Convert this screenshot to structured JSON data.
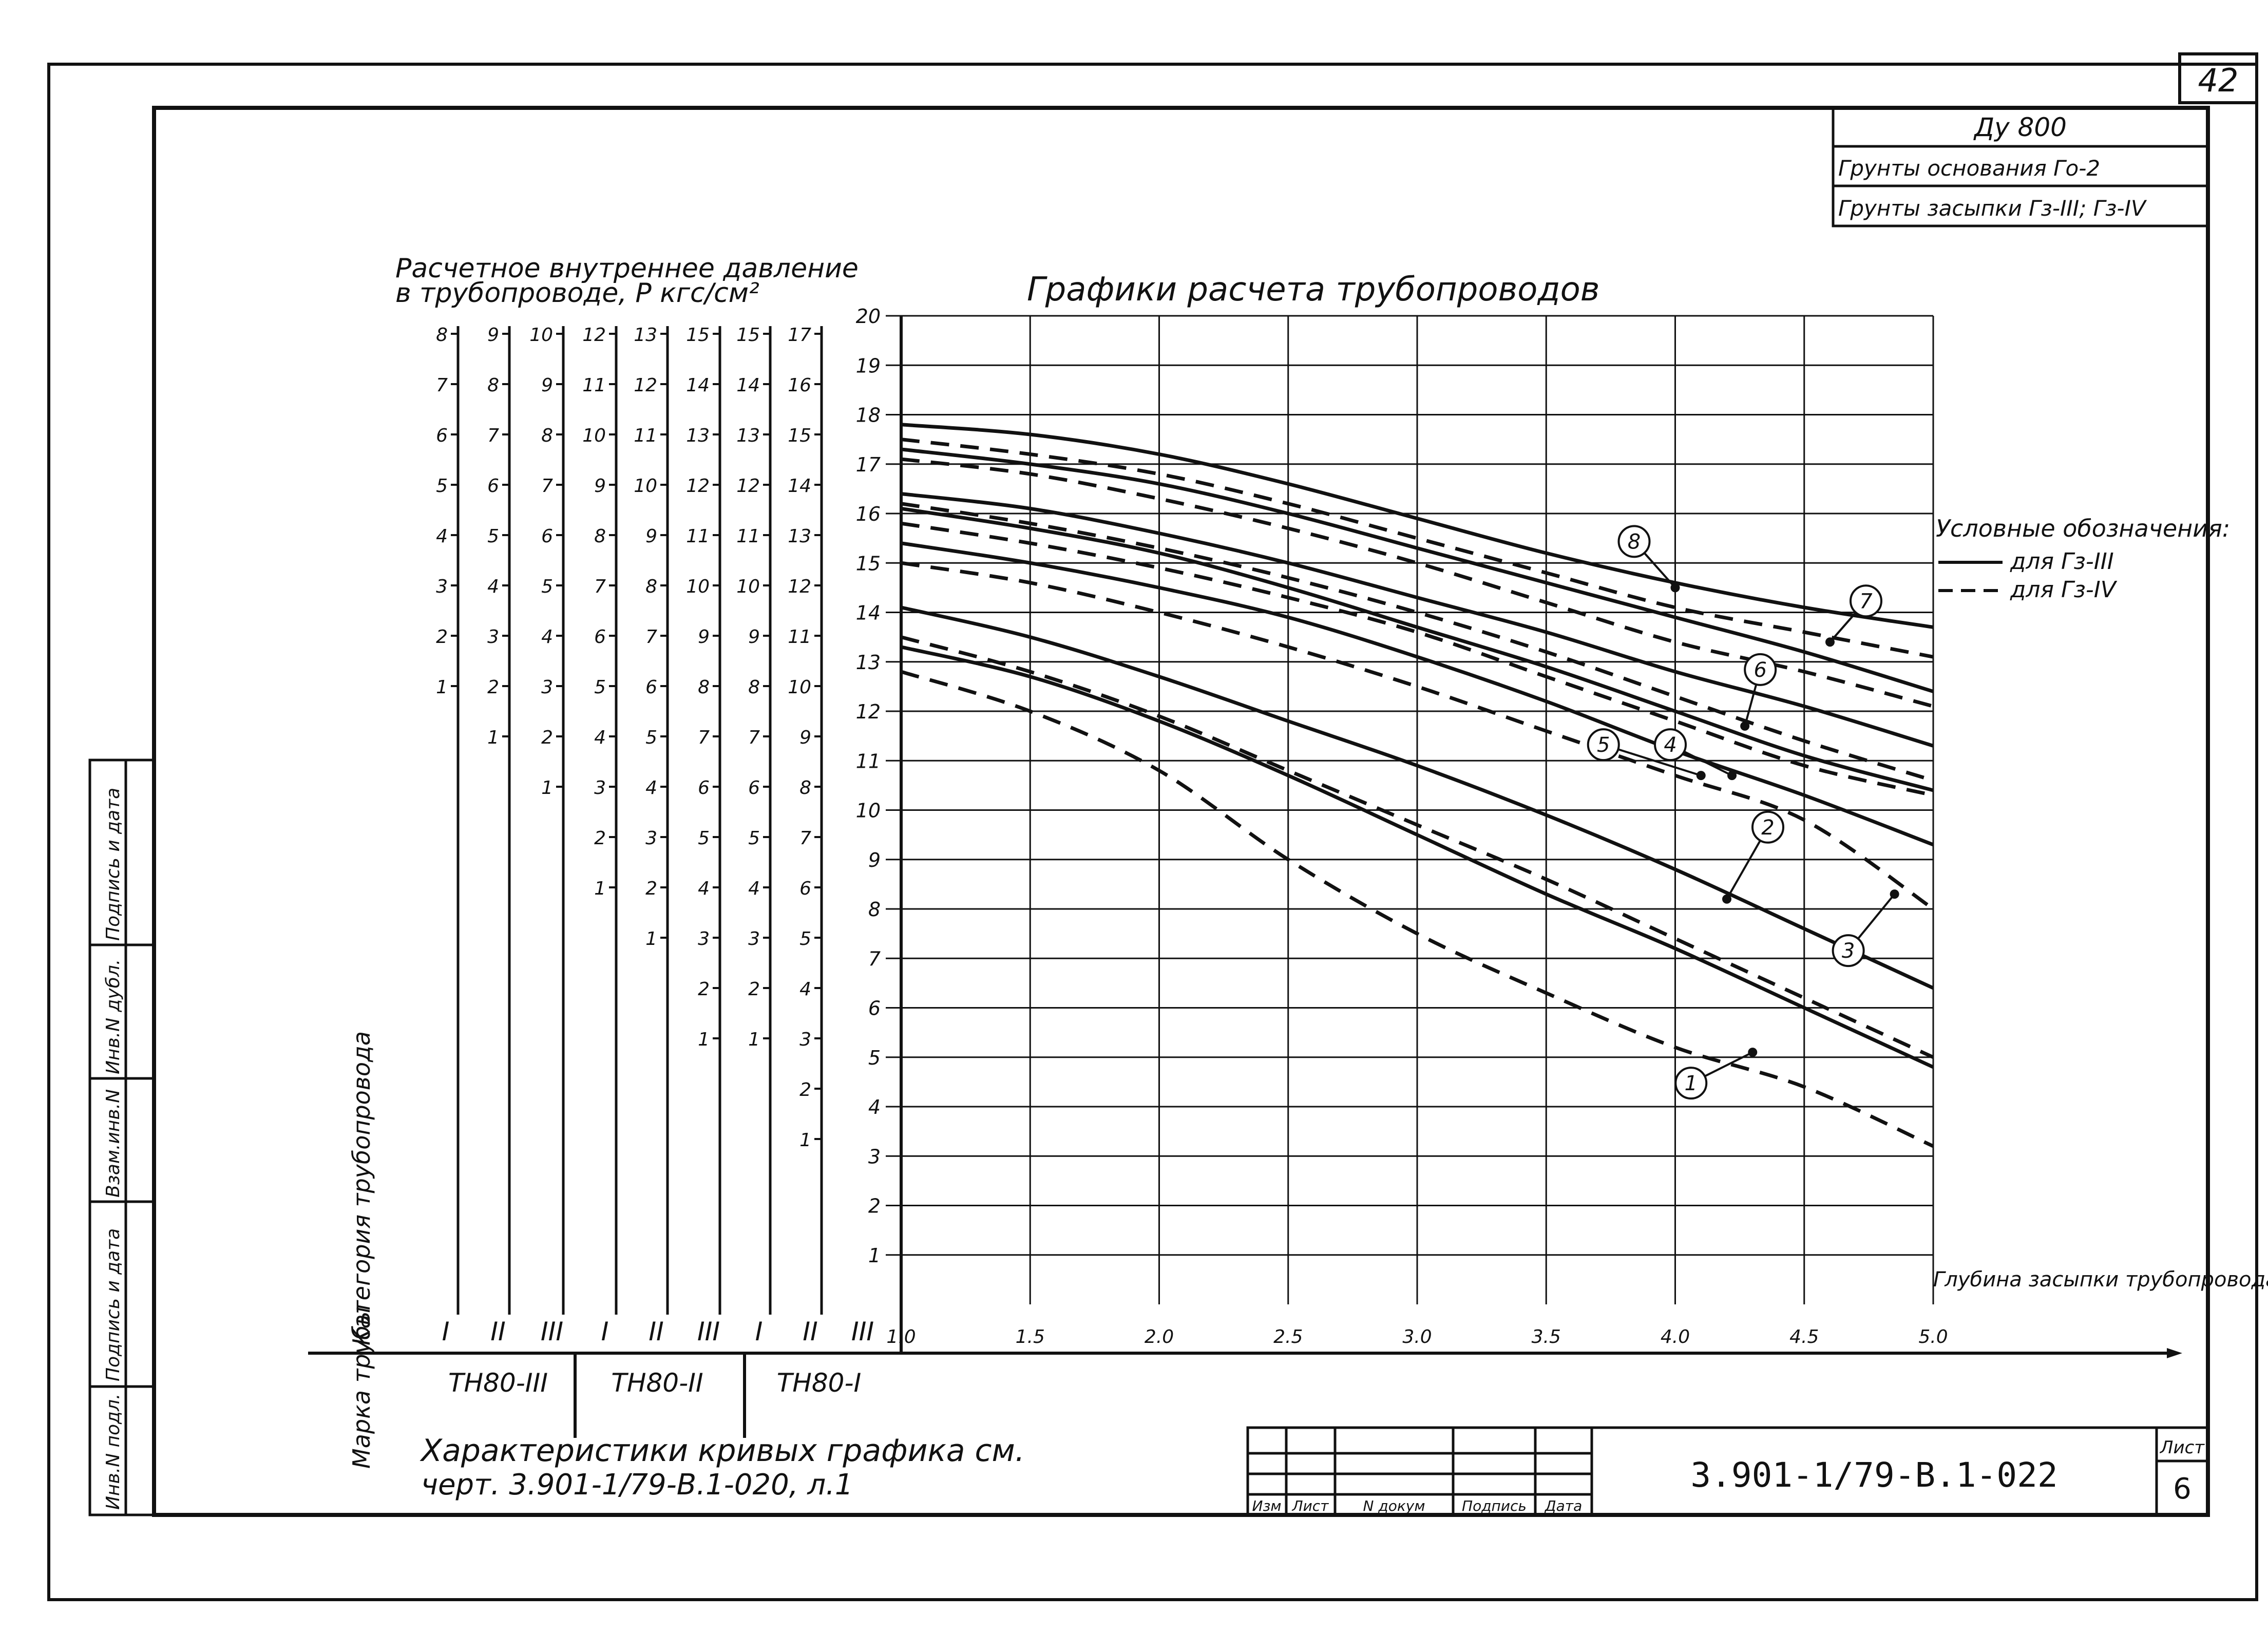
{
  "page_number": "42",
  "stamp": {
    "line1": "Ду 800",
    "line2": "Грунты основания Го-2",
    "line3": "Грунты засыпки Гз-III; Гз-IV"
  },
  "header": {
    "pressure_title_1": "Расчетное внутреннее давление",
    "pressure_title_2": "в трубопроводе, P кгс/см²",
    "chart_title": "Графики расчета трубопроводов"
  },
  "legend": {
    "title": "Условные обозначения:",
    "solid": "для Гз-III",
    "dashed": "для Гз-IV"
  },
  "x_axis_label": "Глубина засыпки трубопровода Нм (до верха трубы)",
  "row_labels": {
    "category": "Категория трубопровода",
    "pipe_brand": "Марка трубы"
  },
  "categories": [
    "I",
    "II",
    "III",
    "I",
    "II",
    "III",
    "I",
    "II",
    "III"
  ],
  "pipe_brands": [
    "ТН80-III",
    "ТН80-II",
    "ТН80-I"
  ],
  "scales": [
    {
      "ticks": [
        "8",
        "7",
        "6",
        "5",
        "4",
        "3",
        "2",
        "1"
      ]
    },
    {
      "ticks": [
        "9",
        "8",
        "7",
        "6",
        "5",
        "4",
        "3",
        "2",
        "1"
      ]
    },
    {
      "ticks": [
        "10",
        "9",
        "8",
        "7",
        "6",
        "5",
        "4",
        "3",
        "2",
        "1"
      ]
    },
    {
      "ticks": [
        "12",
        "11",
        "10",
        "9",
        "8",
        "7",
        "6",
        "5",
        "4",
        "3",
        "2",
        "1"
      ]
    },
    {
      "ticks": [
        "13",
        "12",
        "11",
        "10",
        "9",
        "8",
        "7",
        "6",
        "5",
        "4",
        "3",
        "2",
        "1"
      ]
    },
    {
      "ticks": [
        "15",
        "14",
        "13",
        "12",
        "11",
        "10",
        "9",
        "8",
        "7",
        "6",
        "5",
        "4",
        "3",
        "2",
        "1"
      ]
    },
    {
      "ticks": [
        "15",
        "14",
        "13",
        "12",
        "11",
        "10",
        "9",
        "8",
        "7",
        "6",
        "5",
        "4",
        "3",
        "2",
        "1"
      ]
    },
    {
      "ticks": [
        "17",
        "16",
        "15",
        "14",
        "13",
        "12",
        "11",
        "10",
        "9",
        "8",
        "7",
        "6",
        "5",
        "4",
        "3",
        "2",
        "1"
      ]
    }
  ],
  "note": {
    "line1": "Характеристики кривых графика см.",
    "line2": "черт. 3.901-1/79-В.1-020, л.1"
  },
  "title_block": {
    "code": "3.901-1/79-В.1-022",
    "sheet_label": "Лист",
    "sheet_number": "6",
    "columns": [
      "Изм",
      "Лист",
      "N докум",
      "Подпись",
      "Дата"
    ]
  },
  "side_stamp": [
    "Инв.N подл.",
    "Подпись и дата",
    "Взам.инв.N",
    "Инв.N дубл.",
    "Подпись и дата"
  ],
  "colors": {
    "ink": "#111111",
    "paper": "#ffffff"
  },
  "chart_data": {
    "type": "line",
    "title": "Графики расчета трубопроводов",
    "xlabel": "Глубина засыпки трубопровода Нм (до верха трубы)",
    "ylabel": "",
    "xlim": [
      1.0,
      5.0
    ],
    "ylim": [
      0,
      20
    ],
    "x_ticks": [
      "1.0",
      "1.5",
      "2.0",
      "2.5",
      "3.0",
      "3.5",
      "4.0",
      "4.5",
      "5.0"
    ],
    "y_ticks": [
      "1",
      "2",
      "3",
      "4",
      "5",
      "6",
      "7",
      "8",
      "9",
      "10",
      "11",
      "12",
      "13",
      "14",
      "15",
      "16",
      "17",
      "18",
      "19",
      "20"
    ],
    "grid": true,
    "legend_position": "right",
    "x": [
      1.0,
      1.5,
      2.0,
      2.5,
      3.0,
      3.5,
      4.0,
      4.5,
      5.0
    ],
    "series": [
      {
        "label": "1",
        "style": "dashed",
        "values": [
          12.8,
          12.0,
          10.8,
          9.0,
          7.5,
          6.3,
          5.2,
          4.4,
          3.2
        ]
      },
      {
        "label": "1",
        "style": "solid",
        "values": [
          13.3,
          12.7,
          11.8,
          10.7,
          9.5,
          8.3,
          7.2,
          6.0,
          4.8
        ]
      },
      {
        "label": "2",
        "style": "dashed",
        "values": [
          13.5,
          12.8,
          11.9,
          10.8,
          9.7,
          8.6,
          7.4,
          6.2,
          5.0
        ]
      },
      {
        "label": "2",
        "style": "solid",
        "values": [
          14.1,
          13.5,
          12.7,
          11.8,
          10.9,
          9.9,
          8.8,
          7.6,
          6.4
        ]
      },
      {
        "label": "3",
        "style": "dashed",
        "values": [
          15.0,
          14.6,
          14.0,
          13.3,
          12.5,
          11.6,
          10.7,
          9.8,
          8.0
        ]
      },
      {
        "label": "3",
        "style": "solid",
        "values": [
          15.4,
          15.0,
          14.5,
          13.9,
          13.1,
          12.2,
          11.2,
          10.3,
          9.3
        ]
      },
      {
        "label": "4",
        "style": "dashed",
        "values": [
          15.8,
          15.4,
          14.9,
          14.3,
          13.6,
          12.7,
          11.8,
          10.9,
          10.3
        ]
      },
      {
        "label": "4",
        "style": "solid",
        "values": [
          16.1,
          15.7,
          15.2,
          14.5,
          13.7,
          12.9,
          12.0,
          11.1,
          10.4
        ]
      },
      {
        "label": "5",
        "style": "dashed",
        "values": [
          16.2,
          15.8,
          15.3,
          14.7,
          14.0,
          13.2,
          12.3,
          11.4,
          10.6
        ]
      },
      {
        "label": "6",
        "style": "solid",
        "values": [
          16.4,
          16.1,
          15.6,
          15.0,
          14.3,
          13.6,
          12.8,
          12.1,
          11.3
        ]
      },
      {
        "label": "7",
        "style": "dashed",
        "values": [
          17.1,
          16.8,
          16.3,
          15.7,
          15.0,
          14.2,
          13.4,
          12.8,
          12.1
        ]
      },
      {
        "label": "7",
        "style": "solid",
        "values": [
          17.3,
          17.0,
          16.6,
          16.0,
          15.3,
          14.6,
          13.9,
          13.2,
          12.4
        ]
      },
      {
        "label": "8",
        "style": "dashed",
        "values": [
          17.5,
          17.2,
          16.8,
          16.2,
          15.5,
          14.8,
          14.1,
          13.6,
          13.1
        ]
      },
      {
        "label": "8",
        "style": "solid",
        "values": [
          17.8,
          17.6,
          17.2,
          16.6,
          15.9,
          15.2,
          14.6,
          14.1,
          13.7
        ]
      }
    ],
    "callouts": [
      {
        "label": "1",
        "x": 4.3,
        "y": 5.1
      },
      {
        "label": "2",
        "x": 4.2,
        "y": 8.2
      },
      {
        "label": "3",
        "x": 4.85,
        "y": 8.3
      },
      {
        "label": "4",
        "x": 4.22,
        "y": 10.7
      },
      {
        "label": "5",
        "x": 4.1,
        "y": 10.7
      },
      {
        "label": "6",
        "x": 4.27,
        "y": 11.7
      },
      {
        "label": "7",
        "x": 4.6,
        "y": 13.4
      },
      {
        "label": "8",
        "x": 4.0,
        "y": 14.5
      }
    ]
  }
}
